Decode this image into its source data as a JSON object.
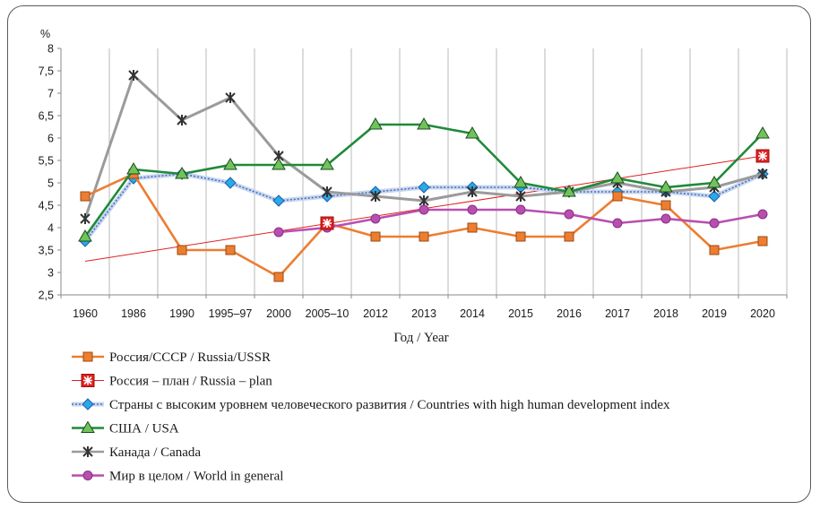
{
  "chart_data": {
    "type": "line",
    "ylabel": "%",
    "xlabel": "Год / Year",
    "ylim": [
      2.5,
      8
    ],
    "yticks": [
      "2,5",
      "3",
      "3,5",
      "4",
      "4,5",
      "5",
      "5,5",
      "6",
      "6,5",
      "7",
      "7,5",
      "8"
    ],
    "categories": [
      "1960",
      "1986",
      "1990",
      "1995–97",
      "2000",
      "2005–10",
      "2012",
      "2013",
      "2014",
      "2015",
      "2016",
      "2017",
      "2018",
      "2019",
      "2020"
    ],
    "grid": "vertical",
    "legend_position": "bottom",
    "series": [
      {
        "name": "Россия/СССР / Russia/USSR",
        "color": "#ed7d31",
        "marker": "square",
        "values": [
          4.7,
          5.2,
          3.5,
          3.5,
          2.9,
          4.1,
          3.8,
          3.8,
          4.0,
          3.8,
          3.8,
          4.7,
          4.5,
          3.5,
          3.7
        ]
      },
      {
        "name": "Россия – план / Russia – plan",
        "color": "#e02020",
        "marker": "star-box",
        "values": [
          null,
          null,
          null,
          null,
          null,
          4.1,
          null,
          null,
          null,
          null,
          null,
          null,
          null,
          null,
          5.6
        ]
      },
      {
        "name": "Страны с высоким уровнем человеческого развития  / Countries with high human development index",
        "color": "#4472c4",
        "marker": "diamond",
        "values": [
          3.7,
          5.1,
          5.2,
          5.0,
          4.6,
          4.7,
          4.8,
          4.9,
          4.9,
          4.9,
          4.8,
          4.8,
          4.8,
          4.7,
          5.2
        ]
      },
      {
        "name": "США / USA",
        "color": "#1f8a3a",
        "marker": "triangle",
        "values": [
          3.8,
          5.3,
          5.2,
          5.4,
          5.4,
          5.4,
          6.3,
          6.3,
          6.1,
          5.0,
          4.8,
          5.1,
          4.9,
          5.0,
          6.1
        ]
      },
      {
        "name": "Канада / Canada",
        "color": "#9b9b9b",
        "marker": "asterisk",
        "values": [
          4.2,
          7.4,
          6.4,
          6.9,
          5.6,
          4.8,
          4.7,
          4.6,
          4.8,
          4.7,
          4.8,
          5.0,
          4.8,
          4.9,
          5.2
        ]
      },
      {
        "name": "Мир в целом / World in general",
        "color": "#b84fb0",
        "marker": "circle",
        "values": [
          null,
          null,
          null,
          null,
          3.9,
          4.0,
          4.2,
          4.4,
          4.4,
          4.4,
          4.3,
          4.1,
          4.2,
          4.1,
          4.3
        ]
      }
    ],
    "trendline": {
      "color": "#e02020",
      "from": {
        "x_index": 0,
        "y": 3.25
      },
      "to": {
        "x_index": 14,
        "y": 5.6
      }
    }
  }
}
